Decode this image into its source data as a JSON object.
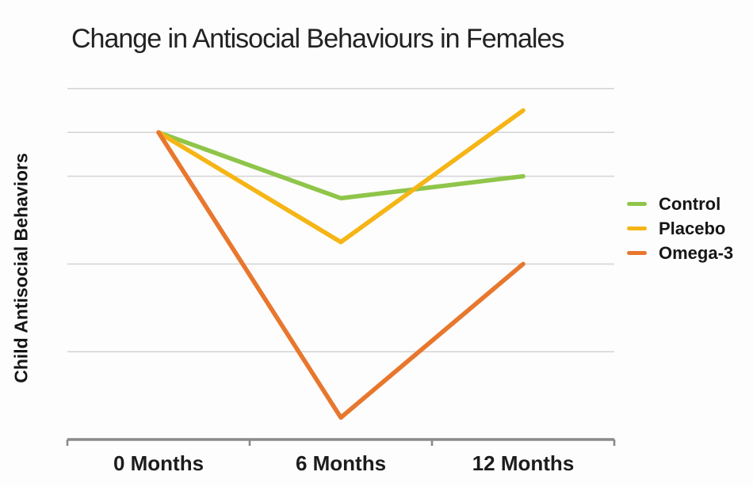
{
  "chart_data": {
    "type": "line",
    "title": "Change in Antisocial Behaviours in Females",
    "ylabel": "Child Antisocial Behaviors",
    "xlabel": "",
    "categories": [
      "0 Months",
      "6 Months",
      "12 Months"
    ],
    "series": [
      {
        "name": "Control",
        "color": "#8fc54a",
        "values": [
          7.0,
          5.5,
          6.0
        ]
      },
      {
        "name": "Placebo",
        "color": "#f6b516",
        "values": [
          7.0,
          4.5,
          7.5
        ]
      },
      {
        "name": "Omega-3",
        "color": "#e8772e",
        "values": [
          7.0,
          0.5,
          4.0
        ]
      }
    ],
    "ylim": [
      0,
      8.3
    ],
    "gridline_values": [
      2,
      4,
      6,
      7,
      8
    ],
    "grid": "horizontal-only",
    "y_tick_labels_shown": false,
    "legend_position": "right",
    "colors": {
      "gridline": "#d6d6d6",
      "axis": "#8a8a8a",
      "text": "#1c1c1c",
      "background": "#fdfdfd"
    }
  }
}
